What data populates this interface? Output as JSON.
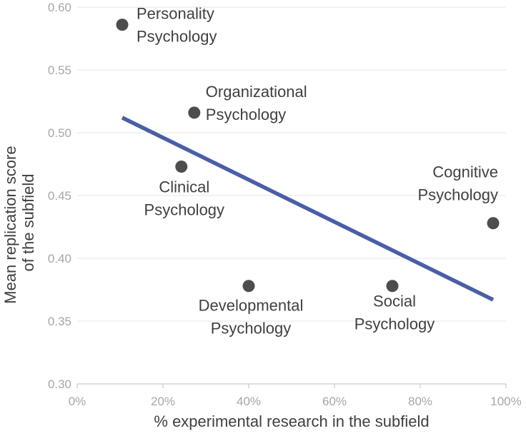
{
  "chart_data": {
    "type": "scatter",
    "title": "",
    "xlabel": "% experimental research in the subfield",
    "ylabel_lines": [
      "Mean replication score",
      "of the subfield"
    ],
    "xlim": [
      0,
      100
    ],
    "ylim": [
      0.3,
      0.6
    ],
    "x_ticks": [
      0,
      20,
      40,
      60,
      80,
      100
    ],
    "x_tick_labels": [
      "0%",
      "20%",
      "40%",
      "60%",
      "80%",
      "100%"
    ],
    "y_ticks": [
      0.3,
      0.35,
      0.4,
      0.45,
      0.5,
      0.55,
      0.6
    ],
    "y_tick_labels": [
      "0.30",
      "0.35",
      "0.40",
      "0.45",
      "0.50",
      "0.55",
      "0.60"
    ],
    "grid": "horizontal",
    "points": [
      {
        "x": 10.5,
        "y": 0.586,
        "label_lines": [
          "Personality",
          "Psychology"
        ]
      },
      {
        "x": 27.3,
        "y": 0.516,
        "label_lines": [
          "Organizational",
          "Psychology"
        ]
      },
      {
        "x": 24.3,
        "y": 0.473,
        "label_lines": [
          "Clinical",
          "Psychology"
        ]
      },
      {
        "x": 40.0,
        "y": 0.378,
        "label_lines": [
          "Developmental",
          "Psychology"
        ]
      },
      {
        "x": 73.5,
        "y": 0.378,
        "label_lines": [
          "Social",
          "Psychology"
        ]
      },
      {
        "x": 97.0,
        "y": 0.428,
        "label_lines": [
          "Cognitive",
          "Psychology"
        ]
      }
    ],
    "trendline": {
      "x": [
        10.5,
        97.0
      ],
      "y": [
        0.512,
        0.367
      ]
    },
    "colors": {
      "point": "#4d4d4d",
      "trendline": "#4a5ea8",
      "grid": "#e4e4e4",
      "tick_label": "#a6a6a6",
      "text": "#404040"
    }
  }
}
